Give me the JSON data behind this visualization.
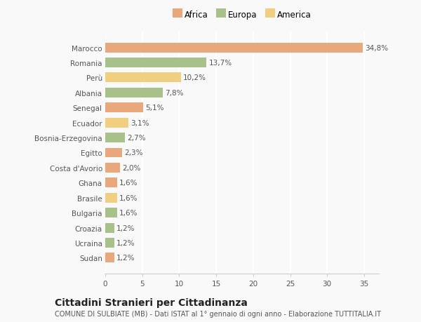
{
  "countries": [
    "Marocco",
    "Romania",
    "Perù",
    "Albania",
    "Senegal",
    "Ecuador",
    "Bosnia-Erzegovina",
    "Egitto",
    "Costa d'Avorio",
    "Ghana",
    "Brasile",
    "Bulgaria",
    "Croazia",
    "Ucraina",
    "Sudan"
  ],
  "values": [
    34.8,
    13.7,
    10.2,
    7.8,
    5.1,
    3.1,
    2.7,
    2.3,
    2.0,
    1.6,
    1.6,
    1.6,
    1.2,
    1.2,
    1.2
  ],
  "labels": [
    "34,8%",
    "13,7%",
    "10,2%",
    "7,8%",
    "5,1%",
    "3,1%",
    "2,7%",
    "2,3%",
    "2,0%",
    "1,6%",
    "1,6%",
    "1,6%",
    "1,2%",
    "1,2%",
    "1,2%"
  ],
  "colors": [
    "#e8a87c",
    "#a8c08a",
    "#f0d080",
    "#a8c08a",
    "#e8a87c",
    "#f0d080",
    "#a8c08a",
    "#e8a87c",
    "#e8a87c",
    "#e8a87c",
    "#f0d080",
    "#a8c08a",
    "#a8c08a",
    "#a8c08a",
    "#e8a87c"
  ],
  "legend_labels": [
    "Africa",
    "Europa",
    "America"
  ],
  "legend_colors": [
    "#e8a87c",
    "#a8c08a",
    "#f0d080"
  ],
  "title": "Cittadini Stranieri per Cittadinanza",
  "subtitle": "COMUNE DI SULBIATE (MB) - Dati ISTAT al 1° gennaio di ogni anno - Elaborazione TUTTITALIA.IT",
  "xlim": [
    0,
    37
  ],
  "xticks": [
    0,
    5,
    10,
    15,
    20,
    25,
    30,
    35
  ],
  "bg_color": "#f9f9f9",
  "grid_color": "#ffffff",
  "label_fontsize": 7.5,
  "tick_fontsize": 7.5,
  "ytick_fontsize": 7.5,
  "title_fontsize": 10,
  "subtitle_fontsize": 7
}
